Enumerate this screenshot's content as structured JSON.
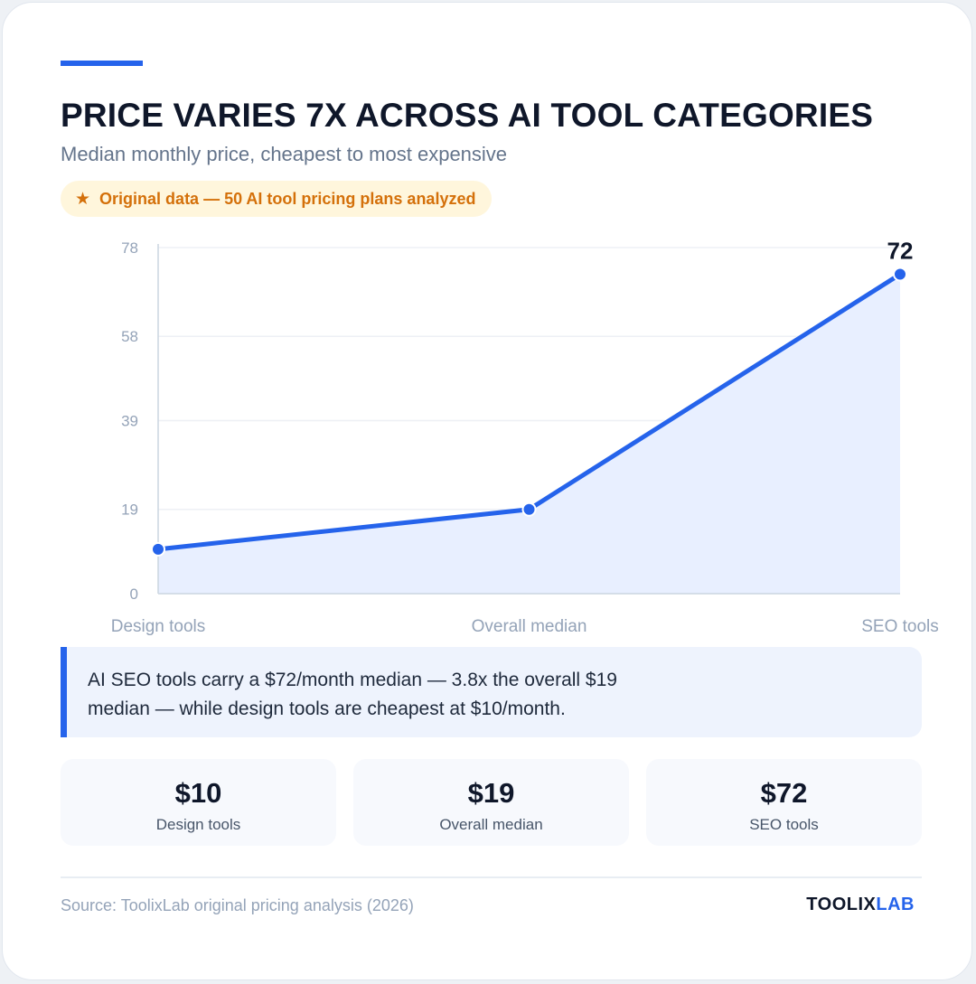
{
  "header": {
    "title": "PRICE VARIES 7X ACROSS AI TOOL CATEGORIES",
    "subtitle": "Median monthly price, cheapest to most expensive"
  },
  "badge": {
    "icon": "star-icon",
    "text": "Original data — 50 AI tool pricing plans analyzed"
  },
  "chart_data": {
    "type": "area",
    "categories": [
      "Design tools",
      "Overall median",
      "SEO tools"
    ],
    "values": [
      10,
      19,
      72
    ],
    "yticks": [
      0,
      19,
      39,
      58,
      78
    ],
    "ylim": [
      0,
      78
    ],
    "grid": true,
    "data_labels": [
      {
        "category": "SEO tools",
        "value": "72"
      }
    ],
    "colors": {
      "line": "#2563eb",
      "fill": "#e8efff"
    }
  },
  "callout": {
    "text": "AI SEO tools carry a $72/month median — 3.8x the overall $19 median — while design tools are cheapest at $10/month."
  },
  "stats": [
    {
      "value": "$10",
      "label": "Design tools"
    },
    {
      "value": "$19",
      "label": "Overall median"
    },
    {
      "value": "$72",
      "label": "SEO tools"
    }
  ],
  "footer": {
    "source": "Source: ToolixLab original pricing analysis (2026)",
    "brand_part1": "TOOLIX",
    "brand_part2": "LAB"
  },
  "colors": {
    "accent": "#2563eb",
    "badge_text": "#d4700a",
    "badge_bg": "#fff6dc"
  }
}
